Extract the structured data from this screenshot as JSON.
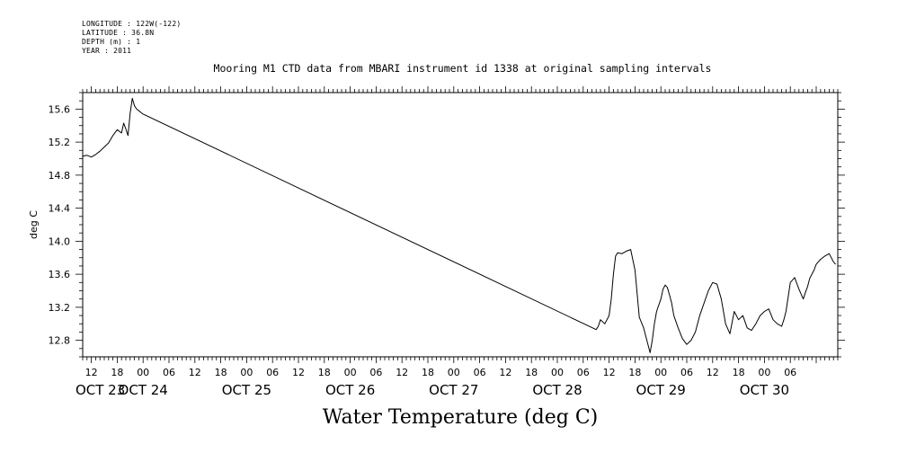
{
  "meta": {
    "longitude": "LONGITUDE : 122W(-122)",
    "latitude": "LATITUDE : 36.8N",
    "depth": "DEPTH (m) : 1",
    "year": "YEAR : 2011"
  },
  "chart_data": {
    "type": "line",
    "title": "Mooring M1 CTD data from MBARI instrument id 1338 at original sampling intervals",
    "footer_title": "Water Temperature (deg C)",
    "ylabel": "deg C",
    "xlabel": "",
    "ylim": [
      12.6,
      15.8
    ],
    "xlim": [
      10,
      185
    ],
    "x_units": "hours since 2011-10-23 00:00",
    "y_ticks": [
      "15.6",
      "15.2",
      "14.8",
      "14.4",
      "14.0",
      "13.6",
      "13.2",
      "12.8"
    ],
    "x_hour_labels": [
      "12",
      "18",
      "00",
      "06",
      "12",
      "18",
      "00",
      "06",
      "12",
      "18",
      "00",
      "06",
      "12",
      "18",
      "00",
      "06",
      "12",
      "18",
      "00",
      "06",
      "12",
      "18",
      "00",
      "06",
      "12",
      "18",
      "00",
      "06"
    ],
    "x_day_labels": [
      "OCT 23",
      "OCT 24",
      "OCT 25",
      "OCT 26",
      "OCT 27",
      "OCT 28",
      "OCT 29",
      "OCT 30"
    ],
    "grid": false,
    "series": [
      {
        "x": [
          10,
          11,
          12,
          13,
          14,
          15,
          16,
          17,
          18,
          19,
          19.5,
          20,
          20.5,
          21,
          21.5,
          22,
          22.5,
          23,
          23.5,
          23.7,
          24,
          129,
          129.5,
          130,
          131,
          132,
          132.5,
          133,
          133.5,
          134,
          135,
          136,
          137,
          138,
          139,
          140,
          141,
          141.5,
          142,
          142.5,
          143,
          144,
          144.5,
          145,
          145.5,
          146,
          146.5,
          147,
          148,
          149,
          150,
          151,
          152,
          152.5,
          153,
          154,
          155,
          156,
          157,
          158,
          159,
          160,
          161,
          162,
          163,
          164,
          165,
          166,
          167,
          168,
          169,
          170,
          171,
          172,
          172.5,
          173,
          174,
          175,
          176,
          177,
          177.5,
          178,
          178.5,
          179,
          179.5,
          180,
          181,
          182,
          183,
          184,
          184.5
        ],
        "y": [
          15.03,
          15.04,
          15.02,
          15.05,
          15.09,
          15.14,
          15.19,
          15.28,
          15.35,
          15.31,
          15.43,
          15.36,
          15.28,
          15.55,
          15.73,
          15.64,
          15.6,
          15.58,
          15.56,
          15.55,
          15.54,
          12.93,
          12.97,
          13.05,
          13.0,
          13.1,
          13.3,
          13.6,
          13.82,
          13.86,
          13.85,
          13.88,
          13.9,
          13.65,
          13.08,
          12.95,
          12.75,
          12.65,
          12.8,
          13.0,
          13.15,
          13.3,
          13.42,
          13.47,
          13.44,
          13.35,
          13.25,
          13.1,
          12.95,
          12.82,
          12.75,
          12.8,
          12.9,
          13.0,
          13.1,
          13.25,
          13.4,
          13.5,
          13.48,
          13.3,
          13.0,
          12.88,
          13.15,
          13.05,
          13.1,
          12.95,
          12.92,
          13.0,
          13.1,
          13.15,
          13.18,
          13.05,
          13.0,
          12.97,
          13.05,
          13.15,
          13.5,
          13.56,
          13.42,
          13.3,
          13.38,
          13.45,
          13.55,
          13.6,
          13.65,
          13.72,
          13.78,
          13.82,
          13.85,
          13.75,
          13.72
        ],
        "y_extra_note": ""
      }
    ]
  }
}
